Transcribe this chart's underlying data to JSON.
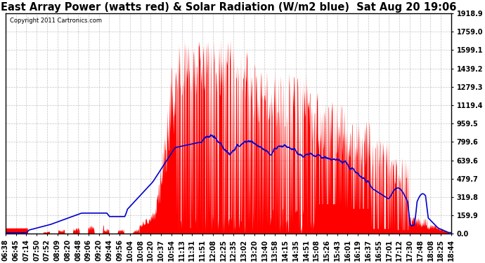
{
  "title": "East Array Power (watts red) & Solar Radiation (W/m2 blue)  Sat Aug 20 19:06",
  "copyright": "Copyright 2011 Cartronics.com",
  "ymax": 1918.9,
  "yticks": [
    0.0,
    159.9,
    319.8,
    479.7,
    639.6,
    799.6,
    959.5,
    1119.4,
    1279.3,
    1439.2,
    1599.1,
    1759.0,
    1918.9
  ],
  "background_color": "#ffffff",
  "grid_color": "#aaaaaa",
  "fill_color": "#ff0000",
  "line_color": "#0000cc",
  "title_fontsize": 10.5,
  "tick_fontsize": 7,
  "x_labels": [
    "06:38",
    "06:45",
    "07:14",
    "07:50",
    "07:52",
    "08:09",
    "08:20",
    "08:48",
    "09:06",
    "09:20",
    "09:44",
    "09:56",
    "10:04",
    "10:08",
    "10:20",
    "10:37",
    "10:54",
    "11:13",
    "11:31",
    "11:51",
    "12:08",
    "12:25",
    "12:35",
    "13:02",
    "13:20",
    "13:40",
    "13:58",
    "14:15",
    "14:35",
    "14:51",
    "15:08",
    "15:26",
    "15:43",
    "16:01",
    "16:19",
    "16:37",
    "16:55",
    "17:01",
    "17:12",
    "17:30",
    "17:48",
    "18:08",
    "18:25",
    "18:44"
  ],
  "n_labels": 44
}
